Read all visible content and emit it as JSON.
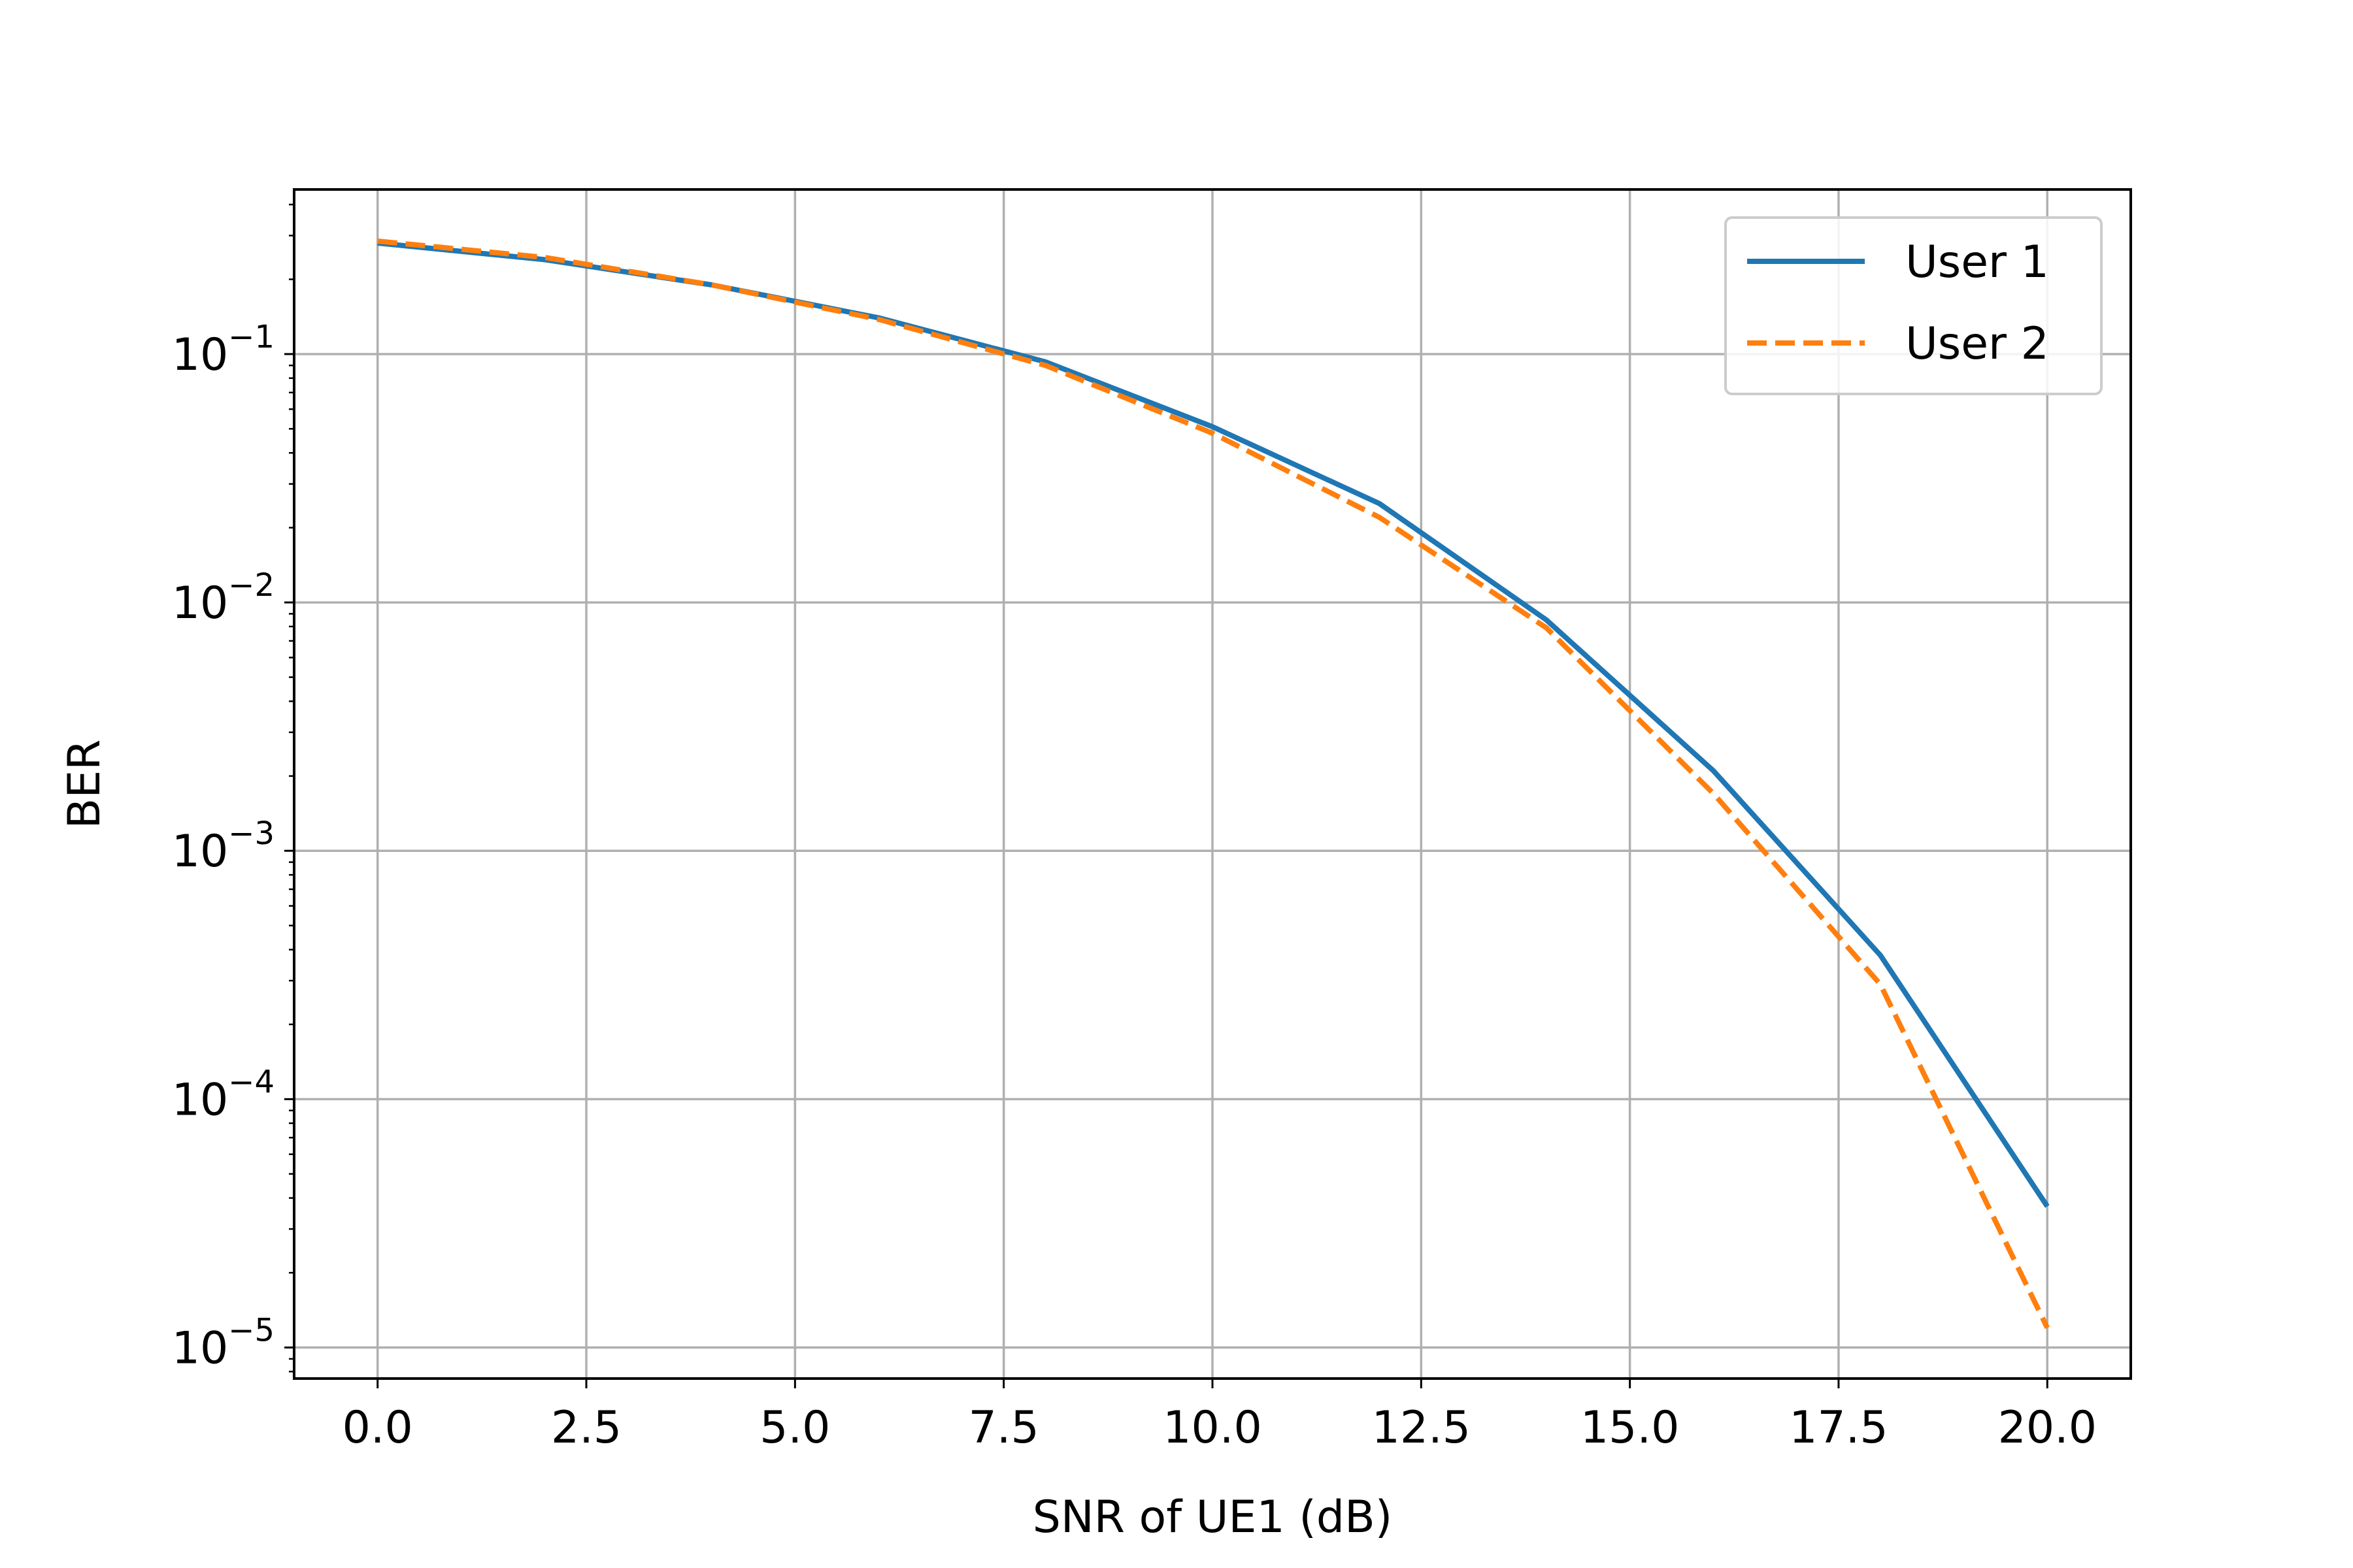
{
  "chart_data": {
    "type": "line",
    "title": "",
    "xlabel": "SNR of UE1 (dB)",
    "ylabel": "BER",
    "xlim": [
      -1.0,
      21.0
    ],
    "ylim": [
      7.5e-06,
      0.46
    ],
    "yscale": "log",
    "grid": true,
    "legend_position": "top-right",
    "x_ticks": [
      "0.0",
      "2.5",
      "5.0",
      "7.5",
      "10.0",
      "12.5",
      "15.0",
      "17.5",
      "20.0"
    ],
    "y_ticks": [
      {
        "base": "10",
        "exp": "−1"
      },
      {
        "base": "10",
        "exp": "−2"
      },
      {
        "base": "10",
        "exp": "−3"
      },
      {
        "base": "10",
        "exp": "−4"
      },
      {
        "base": "10",
        "exp": "−5"
      }
    ],
    "x": [
      0,
      2,
      4,
      6,
      8,
      10,
      12,
      14,
      16,
      18,
      20
    ],
    "series": [
      {
        "name": "User 1",
        "color": "#1f77b4",
        "style": "solid",
        "values": [
          0.28,
          0.24,
          0.19,
          0.14,
          0.093,
          0.051,
          0.025,
          0.0085,
          0.0021,
          0.00038,
          3.7e-05
        ]
      },
      {
        "name": "User 2",
        "color": "#ff7f0e",
        "style": "dashed",
        "values": [
          0.285,
          0.245,
          0.19,
          0.138,
          0.09,
          0.048,
          0.022,
          0.0079,
          0.0017,
          0.00029,
          1.2e-05
        ]
      }
    ]
  }
}
